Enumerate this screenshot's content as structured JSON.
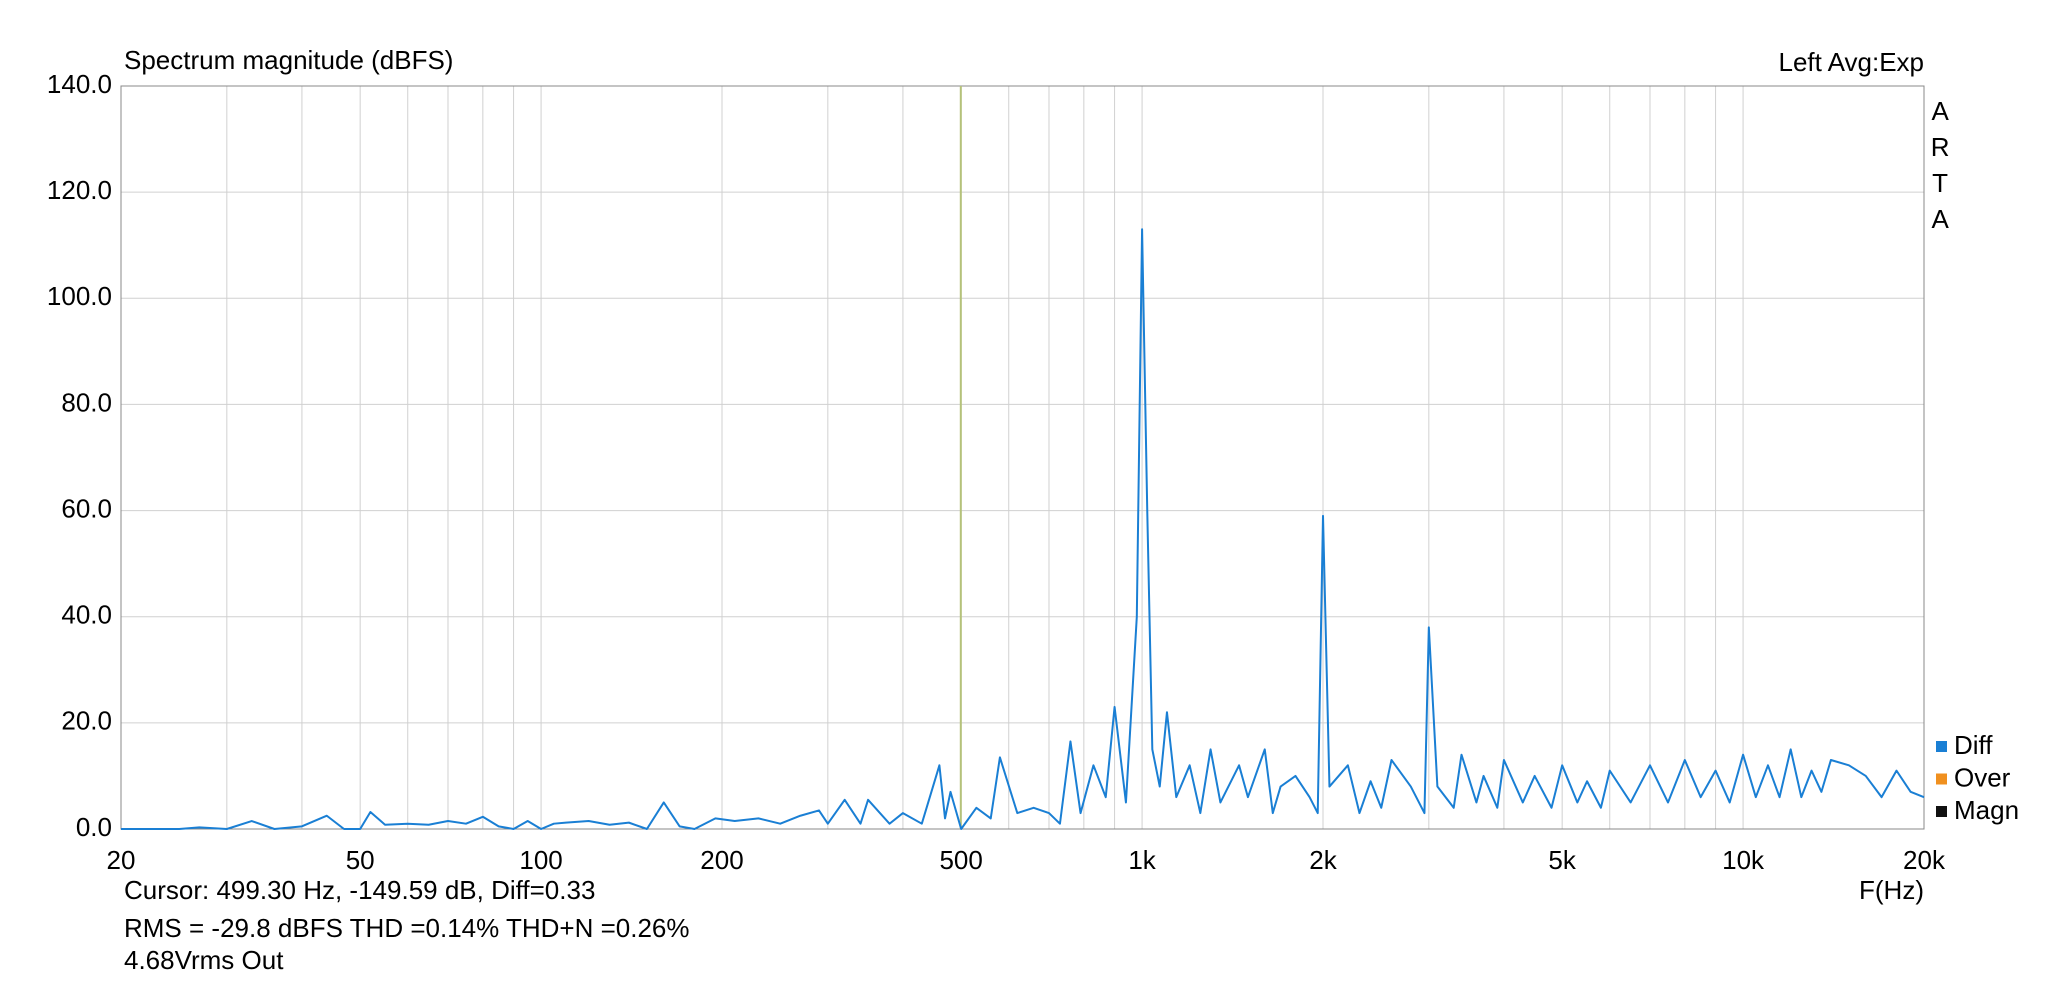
{
  "chart_data": {
    "type": "line",
    "title": "Spectrum magnitude (dBFS)",
    "header_right": "Left  Avg:Exp",
    "side_label": "ARTA",
    "x_label": "F(Hz)",
    "log_x": true,
    "grid": true,
    "xlim": [
      20,
      20000
    ],
    "ylim": [
      0,
      140
    ],
    "xticks": [
      20,
      50,
      100,
      200,
      500,
      {
        "value": 1000,
        "label": "1k"
      },
      {
        "value": 2000,
        "label": "2k"
      },
      {
        "value": 5000,
        "label": "5k"
      },
      {
        "value": 10000,
        "label": "10k"
      },
      {
        "value": 20000,
        "label": "20k"
      }
    ],
    "xgrid_minor": [
      30,
      40,
      60,
      70,
      80,
      90,
      300,
      400,
      600,
      700,
      800,
      900,
      3000,
      4000,
      6000,
      7000,
      8000,
      9000
    ],
    "yticks": [
      {
        "value": 0,
        "label": "0.0"
      },
      {
        "value": 20,
        "label": "20.0"
      },
      {
        "value": 40,
        "label": "40.0"
      },
      {
        "value": 60,
        "label": "60.0"
      },
      {
        "value": 80,
        "label": "80.0"
      },
      {
        "value": 100,
        "label": "100.0"
      },
      {
        "value": 120,
        "label": "120.0"
      },
      {
        "value": 140,
        "label": "140.0"
      }
    ],
    "cursor_x": 499.3,
    "cursor_color": "#b5c27a",
    "series": [
      {
        "name": "Diff",
        "color": "#1a7fd4",
        "x": [
          20,
          25,
          27,
          30,
          33,
          36,
          40,
          44,
          47,
          50,
          52,
          55,
          60,
          65,
          70,
          75,
          80,
          85,
          90,
          95,
          100,
          105,
          110,
          120,
          130,
          140,
          150,
          160,
          170,
          180,
          195,
          210,
          230,
          250,
          270,
          290,
          300,
          320,
          340,
          350,
          380,
          400,
          430,
          460,
          470,
          480,
          500,
          530,
          560,
          580,
          620,
          660,
          700,
          730,
          760,
          790,
          830,
          870,
          900,
          940,
          980,
          1000,
          1020,
          1040,
          1070,
          1100,
          1140,
          1200,
          1250,
          1300,
          1350,
          1450,
          1500,
          1600,
          1650,
          1700,
          1800,
          1900,
          1960,
          2000,
          2050,
          2200,
          2300,
          2400,
          2500,
          2600,
          2800,
          2950,
          3000,
          3100,
          3300,
          3400,
          3600,
          3700,
          3900,
          4000,
          4300,
          4500,
          4800,
          5000,
          5300,
          5500,
          5800,
          6000,
          6500,
          7000,
          7500,
          8000,
          8500,
          9000,
          9500,
          10000,
          10500,
          11000,
          11500,
          12000,
          12500,
          13000,
          13500,
          14000,
          15000,
          16000,
          17000,
          18000,
          19000,
          20000
        ],
        "values": [
          0,
          0,
          0.3,
          0,
          1.5,
          0,
          0.5,
          2.5,
          0,
          0,
          3.2,
          0.8,
          1,
          0.8,
          1.5,
          1,
          2.3,
          0.5,
          0,
          1.5,
          0,
          1,
          1.2,
          1.5,
          0.8,
          1.2,
          0,
          5,
          0.5,
          0,
          2,
          1.5,
          2,
          1,
          2.5,
          3.5,
          1,
          5.5,
          1,
          5.5,
          1,
          3,
          1,
          12,
          2,
          7,
          0,
          4,
          2,
          13.5,
          3,
          4,
          3,
          1,
          16.5,
          3,
          12,
          6,
          23,
          5,
          40,
          113,
          60,
          15,
          8,
          22,
          6,
          12,
          3,
          15,
          5,
          12,
          6,
          15,
          3,
          8,
          10,
          6,
          3,
          59,
          8,
          12,
          3,
          9,
          4,
          13,
          8,
          3,
          38,
          8,
          4,
          14,
          5,
          10,
          4,
          13,
          5,
          10,
          4,
          12,
          5,
          9,
          4,
          11,
          5,
          12,
          5,
          13,
          6,
          11,
          5,
          14,
          6,
          12,
          6,
          15,
          6,
          11,
          7,
          13,
          12,
          10,
          6,
          11,
          7,
          6
        ]
      },
      {
        "name": "Over",
        "color": "#f0901f"
      },
      {
        "name": "Magn",
        "color": "#111111"
      }
    ],
    "footer": {
      "cursor": "Cursor: 499.30 Hz, -149.59 dB,  Diff=0.33",
      "stats": "RMS =  -29.8 dBFS THD =0.14% THD+N =0.26%",
      "stats_color": "#c00000",
      "output": "4.68Vrms Out"
    }
  }
}
